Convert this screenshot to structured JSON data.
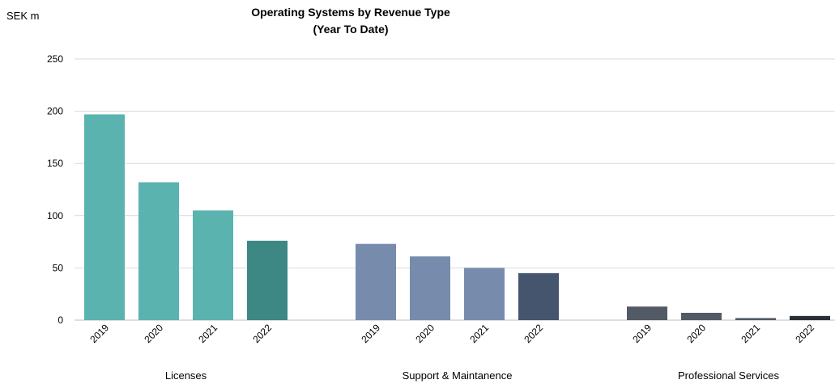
{
  "chart_data": {
    "type": "bar",
    "title": "Operating Systems by Revenue Type",
    "subtitle": "(Year To Date)",
    "unit_label": "SEK m",
    "ylim": [
      0,
      250
    ],
    "yticks": [
      0,
      50,
      100,
      150,
      200,
      250
    ],
    "grid": true,
    "groups": [
      {
        "name": "Licenses",
        "bars": [
          {
            "label": "2019",
            "value": 197,
            "color": "#5ab3af"
          },
          {
            "label": "2020",
            "value": 132,
            "color": "#5ab3af"
          },
          {
            "label": "2021",
            "value": 105,
            "color": "#5ab3af"
          },
          {
            "label": "2022",
            "value": 76,
            "color": "#3d8884"
          }
        ]
      },
      {
        "name": "Support & Maintanence",
        "bars": [
          {
            "label": "2019",
            "value": 73,
            "color": "#778cad"
          },
          {
            "label": "2020",
            "value": 61,
            "color": "#778cad"
          },
          {
            "label": "2021",
            "value": 50,
            "color": "#778cad"
          },
          {
            "label": "2022",
            "value": 45,
            "color": "#45556e"
          }
        ]
      },
      {
        "name": "Professional Services",
        "bars": [
          {
            "label": "2019",
            "value": 13,
            "color": "#525a66"
          },
          {
            "label": "2020",
            "value": 7,
            "color": "#525a66"
          },
          {
            "label": "2021",
            "value": 2,
            "color": "#525a66"
          },
          {
            "label": "2022",
            "value": 4,
            "color": "#2a2e35"
          }
        ]
      }
    ]
  }
}
